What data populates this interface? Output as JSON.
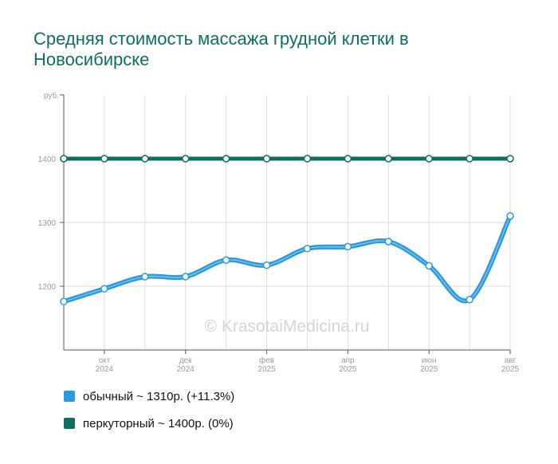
{
  "chart_data": {
    "type": "line",
    "title": "Средняя стоимость массажа грудной клетки в Новосибирске",
    "ylabel": "руб.",
    "ylim": [
      1100,
      1500
    ],
    "yticks": [
      1200,
      1300,
      1400
    ],
    "x_tick_labels": [
      {
        "index": 1,
        "line1": "окт",
        "line2": "2024"
      },
      {
        "index": 3,
        "line1": "дек",
        "line2": "2024"
      },
      {
        "index": 5,
        "line1": "фев",
        "line2": "2025"
      },
      {
        "index": 7,
        "line1": "апр",
        "line2": "2025"
      },
      {
        "index": 9,
        "line1": "июн",
        "line2": "2025"
      },
      {
        "index": 11,
        "line1": "авг",
        "line2": "2025"
      }
    ],
    "series": [
      {
        "name": "обычный",
        "color": "#2a9ae0",
        "values": [
          1176,
          1196,
          1215,
          1215,
          1241,
          1233,
          1259,
          1262,
          1270,
          1232,
          1179,
          1310
        ]
      },
      {
        "name": "перкуторный",
        "color": "#0e6e64",
        "values": [
          1400,
          1400,
          1400,
          1400,
          1400,
          1400,
          1400,
          1400,
          1400,
          1400,
          1400,
          1400
        ]
      }
    ],
    "grid": true,
    "legend_position": "bottom-left"
  },
  "legend": [
    {
      "label": "обычный ~ 1310р. (+11.3%)",
      "color": "#2a9ae0"
    },
    {
      "label": "перкуторный ~ 1400р. (0%)",
      "color": "#0e6e64"
    }
  ],
  "watermark": "© KrasotaiMedicina.ru",
  "colors": {
    "title": "#0e6e64",
    "grid": "#dddddd",
    "axis": "#555555"
  }
}
